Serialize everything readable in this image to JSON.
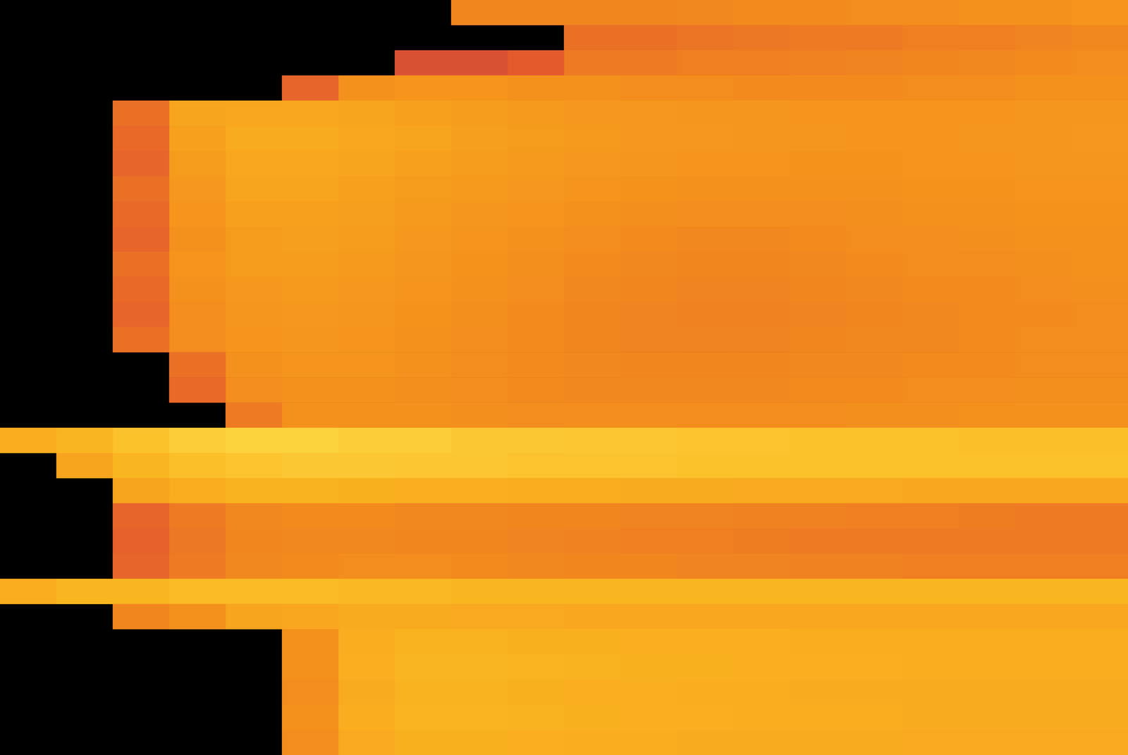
{
  "chart_data": {
    "type": "heatmap",
    "tick_labels": false,
    "grid": false,
    "color_range": [
      0,
      1
    ],
    "cells": [
      [
        null,
        null,
        null,
        null,
        null,
        null,
        null,
        null,
        0.55,
        0.55,
        0.55,
        0.55,
        0.56,
        0.57,
        0.57,
        0.58,
        0.58,
        0.6,
        0.6,
        0.62
      ],
      [
        null,
        null,
        null,
        null,
        null,
        null,
        null,
        null,
        null,
        null,
        0.45,
        0.45,
        0.47,
        0.48,
        0.5,
        0.5,
        0.52,
        0.52,
        0.54,
        0.56
      ],
      [
        null,
        null,
        null,
        null,
        null,
        null,
        null,
        0.3,
        0.3,
        0.35,
        0.5,
        0.5,
        0.52,
        0.52,
        0.53,
        0.54,
        0.55,
        0.56,
        0.57,
        0.58
      ],
      [
        null,
        null,
        null,
        null,
        null,
        0.4,
        0.6,
        0.62,
        0.62,
        0.6,
        0.6,
        0.58,
        0.58,
        0.57,
        0.57,
        0.57,
        0.58,
        0.58,
        0.6,
        0.6
      ],
      [
        null,
        null,
        0.45,
        0.7,
        0.72,
        0.72,
        0.7,
        0.68,
        0.66,
        0.65,
        0.64,
        0.64,
        0.63,
        0.63,
        0.62,
        0.62,
        0.62,
        0.62,
        0.63,
        0.63
      ],
      [
        null,
        null,
        0.42,
        0.68,
        0.74,
        0.74,
        0.72,
        0.7,
        0.67,
        0.66,
        0.65,
        0.64,
        0.64,
        0.63,
        0.63,
        0.62,
        0.62,
        0.63,
        0.63,
        0.64
      ],
      [
        null,
        null,
        0.4,
        0.66,
        0.72,
        0.72,
        0.7,
        0.68,
        0.66,
        0.65,
        0.64,
        0.63,
        0.62,
        0.62,
        0.61,
        0.61,
        0.62,
        0.62,
        0.63,
        0.63
      ],
      [
        null,
        null,
        0.45,
        0.64,
        0.7,
        0.7,
        0.68,
        0.66,
        0.65,
        0.64,
        0.62,
        0.61,
        0.6,
        0.6,
        0.6,
        0.6,
        0.61,
        0.61,
        0.62,
        0.62
      ],
      [
        null,
        null,
        0.42,
        0.62,
        0.68,
        0.68,
        0.67,
        0.65,
        0.63,
        0.62,
        0.6,
        0.59,
        0.58,
        0.58,
        0.58,
        0.59,
        0.6,
        0.6,
        0.61,
        0.61
      ],
      [
        null,
        null,
        0.4,
        0.6,
        0.66,
        0.67,
        0.66,
        0.64,
        0.62,
        0.6,
        0.58,
        0.57,
        0.56,
        0.56,
        0.57,
        0.58,
        0.58,
        0.59,
        0.6,
        0.6
      ],
      [
        null,
        null,
        0.45,
        0.62,
        0.66,
        0.66,
        0.65,
        0.63,
        0.61,
        0.59,
        0.57,
        0.56,
        0.55,
        0.55,
        0.56,
        0.57,
        0.58,
        0.58,
        0.59,
        0.6
      ],
      [
        null,
        null,
        0.42,
        0.6,
        0.64,
        0.65,
        0.64,
        0.62,
        0.6,
        0.58,
        0.56,
        0.55,
        0.54,
        0.54,
        0.55,
        0.56,
        0.57,
        0.57,
        0.58,
        0.59
      ],
      [
        null,
        null,
        0.4,
        0.58,
        0.63,
        0.64,
        0.63,
        0.61,
        0.59,
        0.57,
        0.55,
        0.54,
        0.53,
        0.53,
        0.54,
        0.55,
        0.56,
        0.57,
        0.57,
        0.58
      ],
      [
        null,
        null,
        0.45,
        0.58,
        0.62,
        0.63,
        0.62,
        0.6,
        0.58,
        0.57,
        0.55,
        0.54,
        0.54,
        0.54,
        0.55,
        0.56,
        0.56,
        0.57,
        0.58,
        0.58
      ],
      [
        null,
        null,
        null,
        0.45,
        0.6,
        0.62,
        0.62,
        0.6,
        0.58,
        0.57,
        0.56,
        0.55,
        0.55,
        0.55,
        0.56,
        0.56,
        0.57,
        0.57,
        0.58,
        0.58
      ],
      [
        null,
        null,
        null,
        0.42,
        0.58,
        0.6,
        0.6,
        0.59,
        0.58,
        0.57,
        0.56,
        0.56,
        0.56,
        0.56,
        0.57,
        0.57,
        0.58,
        0.58,
        0.59,
        0.59
      ],
      [
        null,
        null,
        null,
        null,
        0.5,
        0.6,
        0.6,
        0.6,
        0.59,
        0.58,
        0.58,
        0.58,
        0.58,
        0.58,
        0.58,
        0.59,
        0.59,
        0.6,
        0.6,
        0.6
      ],
      [
        0.75,
        0.8,
        0.85,
        0.9,
        0.92,
        0.92,
        0.9,
        0.9,
        0.88,
        0.88,
        0.87,
        0.87,
        0.86,
        0.86,
        0.85,
        0.85,
        0.85,
        0.84,
        0.84,
        0.84
      ],
      [
        null,
        0.7,
        0.8,
        0.84,
        0.86,
        0.88,
        0.88,
        0.87,
        0.87,
        0.86,
        0.86,
        0.86,
        0.85,
        0.85,
        0.85,
        0.85,
        0.85,
        0.85,
        0.85,
        0.85
      ],
      [
        null,
        null,
        0.7,
        0.75,
        0.78,
        0.78,
        0.77,
        0.76,
        0.76,
        0.75,
        0.75,
        0.74,
        0.74,
        0.73,
        0.73,
        0.73,
        0.72,
        0.72,
        0.72,
        0.72
      ],
      [
        null,
        null,
        0.4,
        0.5,
        0.56,
        0.57,
        0.57,
        0.56,
        0.56,
        0.55,
        0.55,
        0.54,
        0.54,
        0.53,
        0.53,
        0.52,
        0.52,
        0.51,
        0.5,
        0.5
      ],
      [
        null,
        null,
        0.38,
        0.48,
        0.55,
        0.56,
        0.56,
        0.55,
        0.55,
        0.54,
        0.53,
        0.52,
        0.52,
        0.51,
        0.5,
        0.5,
        0.5,
        0.5,
        0.5,
        0.5
      ],
      [
        null,
        null,
        0.4,
        0.5,
        0.56,
        0.57,
        0.58,
        0.58,
        0.57,
        0.56,
        0.55,
        0.55,
        0.54,
        0.54,
        0.53,
        0.53,
        0.52,
        0.52,
        0.52,
        0.52
      ],
      [
        0.75,
        0.8,
        0.8,
        0.82,
        0.82,
        0.82,
        0.81,
        0.81,
        0.8,
        0.8,
        0.8,
        0.8,
        0.8,
        0.8,
        0.8,
        0.8,
        0.8,
        0.8,
        0.8,
        0.8
      ],
      [
        null,
        null,
        0.55,
        0.6,
        0.7,
        0.72,
        0.74,
        0.74,
        0.73,
        0.73,
        0.72,
        0.72,
        0.72,
        0.72,
        0.72,
        0.72,
        0.72,
        0.72,
        0.72,
        0.72
      ],
      [
        null,
        null,
        null,
        null,
        null,
        0.6,
        0.75,
        0.78,
        0.78,
        0.77,
        0.77,
        0.76,
        0.76,
        0.76,
        0.75,
        0.75,
        0.75,
        0.75,
        0.75,
        0.75
      ],
      [
        null,
        null,
        null,
        null,
        null,
        0.6,
        0.76,
        0.8,
        0.8,
        0.79,
        0.78,
        0.77,
        0.77,
        0.76,
        0.76,
        0.76,
        0.75,
        0.75,
        0.75,
        0.75
      ],
      [
        null,
        null,
        null,
        null,
        null,
        0.58,
        0.74,
        0.78,
        0.78,
        0.77,
        0.76,
        0.76,
        0.75,
        0.75,
        0.74,
        0.74,
        0.74,
        0.74,
        0.74,
        0.74
      ],
      [
        null,
        null,
        null,
        null,
        null,
        0.6,
        0.75,
        0.79,
        0.79,
        0.78,
        0.77,
        0.76,
        0.76,
        0.75,
        0.75,
        0.75,
        0.74,
        0.74,
        0.74,
        0.74
      ],
      [
        null,
        null,
        null,
        null,
        null,
        0.58,
        0.73,
        0.77,
        0.77,
        0.76,
        0.75,
        0.75,
        0.74,
        0.74,
        0.74,
        0.74,
        0.73,
        0.73,
        0.73,
        0.73
      ]
    ]
  }
}
